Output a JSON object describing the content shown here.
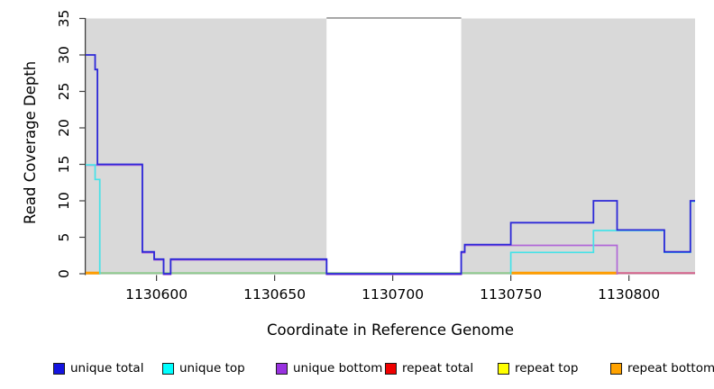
{
  "figure": {
    "xlabel": "Coordinate in Reference Genome",
    "ylabel": "Read Coverage Depth"
  },
  "chart_data": {
    "type": "line",
    "subtype": "step-coverage",
    "title": "",
    "xlabel": "Coordinate in Reference Genome",
    "ylabel": "Read Coverage Depth",
    "xlim": [
      1130570,
      1130828
    ],
    "ylim": [
      0,
      35
    ],
    "xticks": [
      1130600,
      1130650,
      1130700,
      1130750,
      1130800
    ],
    "yticks": [
      0,
      5,
      10,
      15,
      20,
      25,
      30,
      35
    ],
    "grid": false,
    "panel_bg": "#d9d9d9",
    "gap_region": {
      "from": 1130672,
      "to": 1130729,
      "fill": "#ffffff",
      "top_border": "#999999"
    },
    "zero_overlays": [
      {
        "from": 1130570,
        "to": 1130576,
        "color": "#ff9d00",
        "width": 3
      },
      {
        "from": 1130576,
        "to": 1130750,
        "color": "#8fca8f",
        "width": 2
      },
      {
        "from": 1130750,
        "to": 1130795,
        "color": "#ff9d00",
        "width": 3
      },
      {
        "from": 1130795,
        "to": 1130828,
        "color": "#d4638c",
        "width": 2
      }
    ],
    "series": [
      {
        "name": "repeat total",
        "line_color": "#f00000",
        "draw": false,
        "dy": 0,
        "width": 1.6,
        "segments": [
          [
            [
              1130570,
              0
            ],
            [
              1130828,
              0
            ]
          ]
        ]
      },
      {
        "name": "repeat top",
        "line_color": "#ffff00",
        "draw": false,
        "dy": 0,
        "width": 1.6,
        "segments": [
          [
            [
              1130570,
              0
            ],
            [
              1130828,
              0
            ]
          ]
        ]
      },
      {
        "name": "repeat bottom",
        "line_color": "#ffa200",
        "draw": false,
        "dy": 0,
        "width": 1.6,
        "segments": [
          [
            [
              1130570,
              0
            ],
            [
              1130828,
              0
            ]
          ]
        ]
      },
      {
        "name": "unique bottom",
        "line_color": "#b168d8",
        "draw": true,
        "dy": 0.9,
        "width": 1.7,
        "segments": [
          [
            [
              1130570,
              15
            ],
            [
              1130594,
              15
            ],
            [
              1130594,
              3
            ],
            [
              1130599,
              3
            ],
            [
              1130599,
              2
            ],
            [
              1130603,
              2
            ],
            [
              1130603,
              0
            ],
            [
              1130606,
              0
            ],
            [
              1130606,
              2
            ],
            [
              1130672,
              2
            ],
            [
              1130672,
              0
            ],
            [
              1130729,
              0
            ],
            [
              1130729,
              3
            ],
            [
              1130730.5,
              3
            ],
            [
              1130730.5,
              4
            ],
            [
              1130795,
              4
            ],
            [
              1130795,
              0
            ]
          ]
        ]
      },
      {
        "name": "unique top",
        "line_color": "#45e2e8",
        "draw": true,
        "dy": 0.6,
        "width": 1.7,
        "segments": [
          [
            [
              1130570,
              15
            ],
            [
              1130574,
              15
            ],
            [
              1130574,
              13
            ],
            [
              1130576,
              13
            ],
            [
              1130576,
              0
            ]
          ],
          [
            [
              1130750,
              0
            ],
            [
              1130750,
              3
            ],
            [
              1130785,
              3
            ],
            [
              1130785,
              6
            ],
            [
              1130815,
              6
            ],
            [
              1130815,
              3
            ],
            [
              1130826,
              3
            ],
            [
              1130826,
              10
            ],
            [
              1130828,
              10
            ]
          ]
        ]
      },
      {
        "name": "unique total",
        "line_color": "#2c28d8",
        "draw": true,
        "dy": 0,
        "width": 1.8,
        "segments": [
          [
            [
              1130570,
              30
            ],
            [
              1130574,
              30
            ],
            [
              1130574,
              28
            ],
            [
              1130575,
              28
            ],
            [
              1130575,
              15
            ],
            [
              1130594,
              15
            ],
            [
              1130594,
              3
            ],
            [
              1130599,
              3
            ],
            [
              1130599,
              2
            ],
            [
              1130603,
              2
            ],
            [
              1130603,
              0
            ],
            [
              1130606,
              0
            ],
            [
              1130606,
              2
            ],
            [
              1130672,
              2
            ],
            [
              1130672,
              0
            ],
            [
              1130729,
              0
            ],
            [
              1130729,
              3
            ],
            [
              1130730.5,
              3
            ],
            [
              1130730.5,
              4
            ],
            [
              1130750,
              4
            ],
            [
              1130750,
              7
            ],
            [
              1130785,
              7
            ],
            [
              1130785,
              10
            ],
            [
              1130795,
              10
            ],
            [
              1130795,
              6
            ],
            [
              1130815,
              6
            ],
            [
              1130815,
              3
            ],
            [
              1130826,
              3
            ],
            [
              1130826,
              10
            ],
            [
              1130828,
              10
            ]
          ]
        ]
      }
    ],
    "legend": [
      {
        "label": "unique total",
        "color": "#1414e0"
      },
      {
        "label": "unique top",
        "color": "#00ffff"
      },
      {
        "label": "unique bottom",
        "color": "#9932e0"
      },
      {
        "label": "repeat total",
        "color": "#f00000"
      },
      {
        "label": "repeat top",
        "color": "#ffff00"
      },
      {
        "label": "repeat bottom",
        "color": "#ffa200"
      }
    ],
    "legend_position": "bottom"
  }
}
